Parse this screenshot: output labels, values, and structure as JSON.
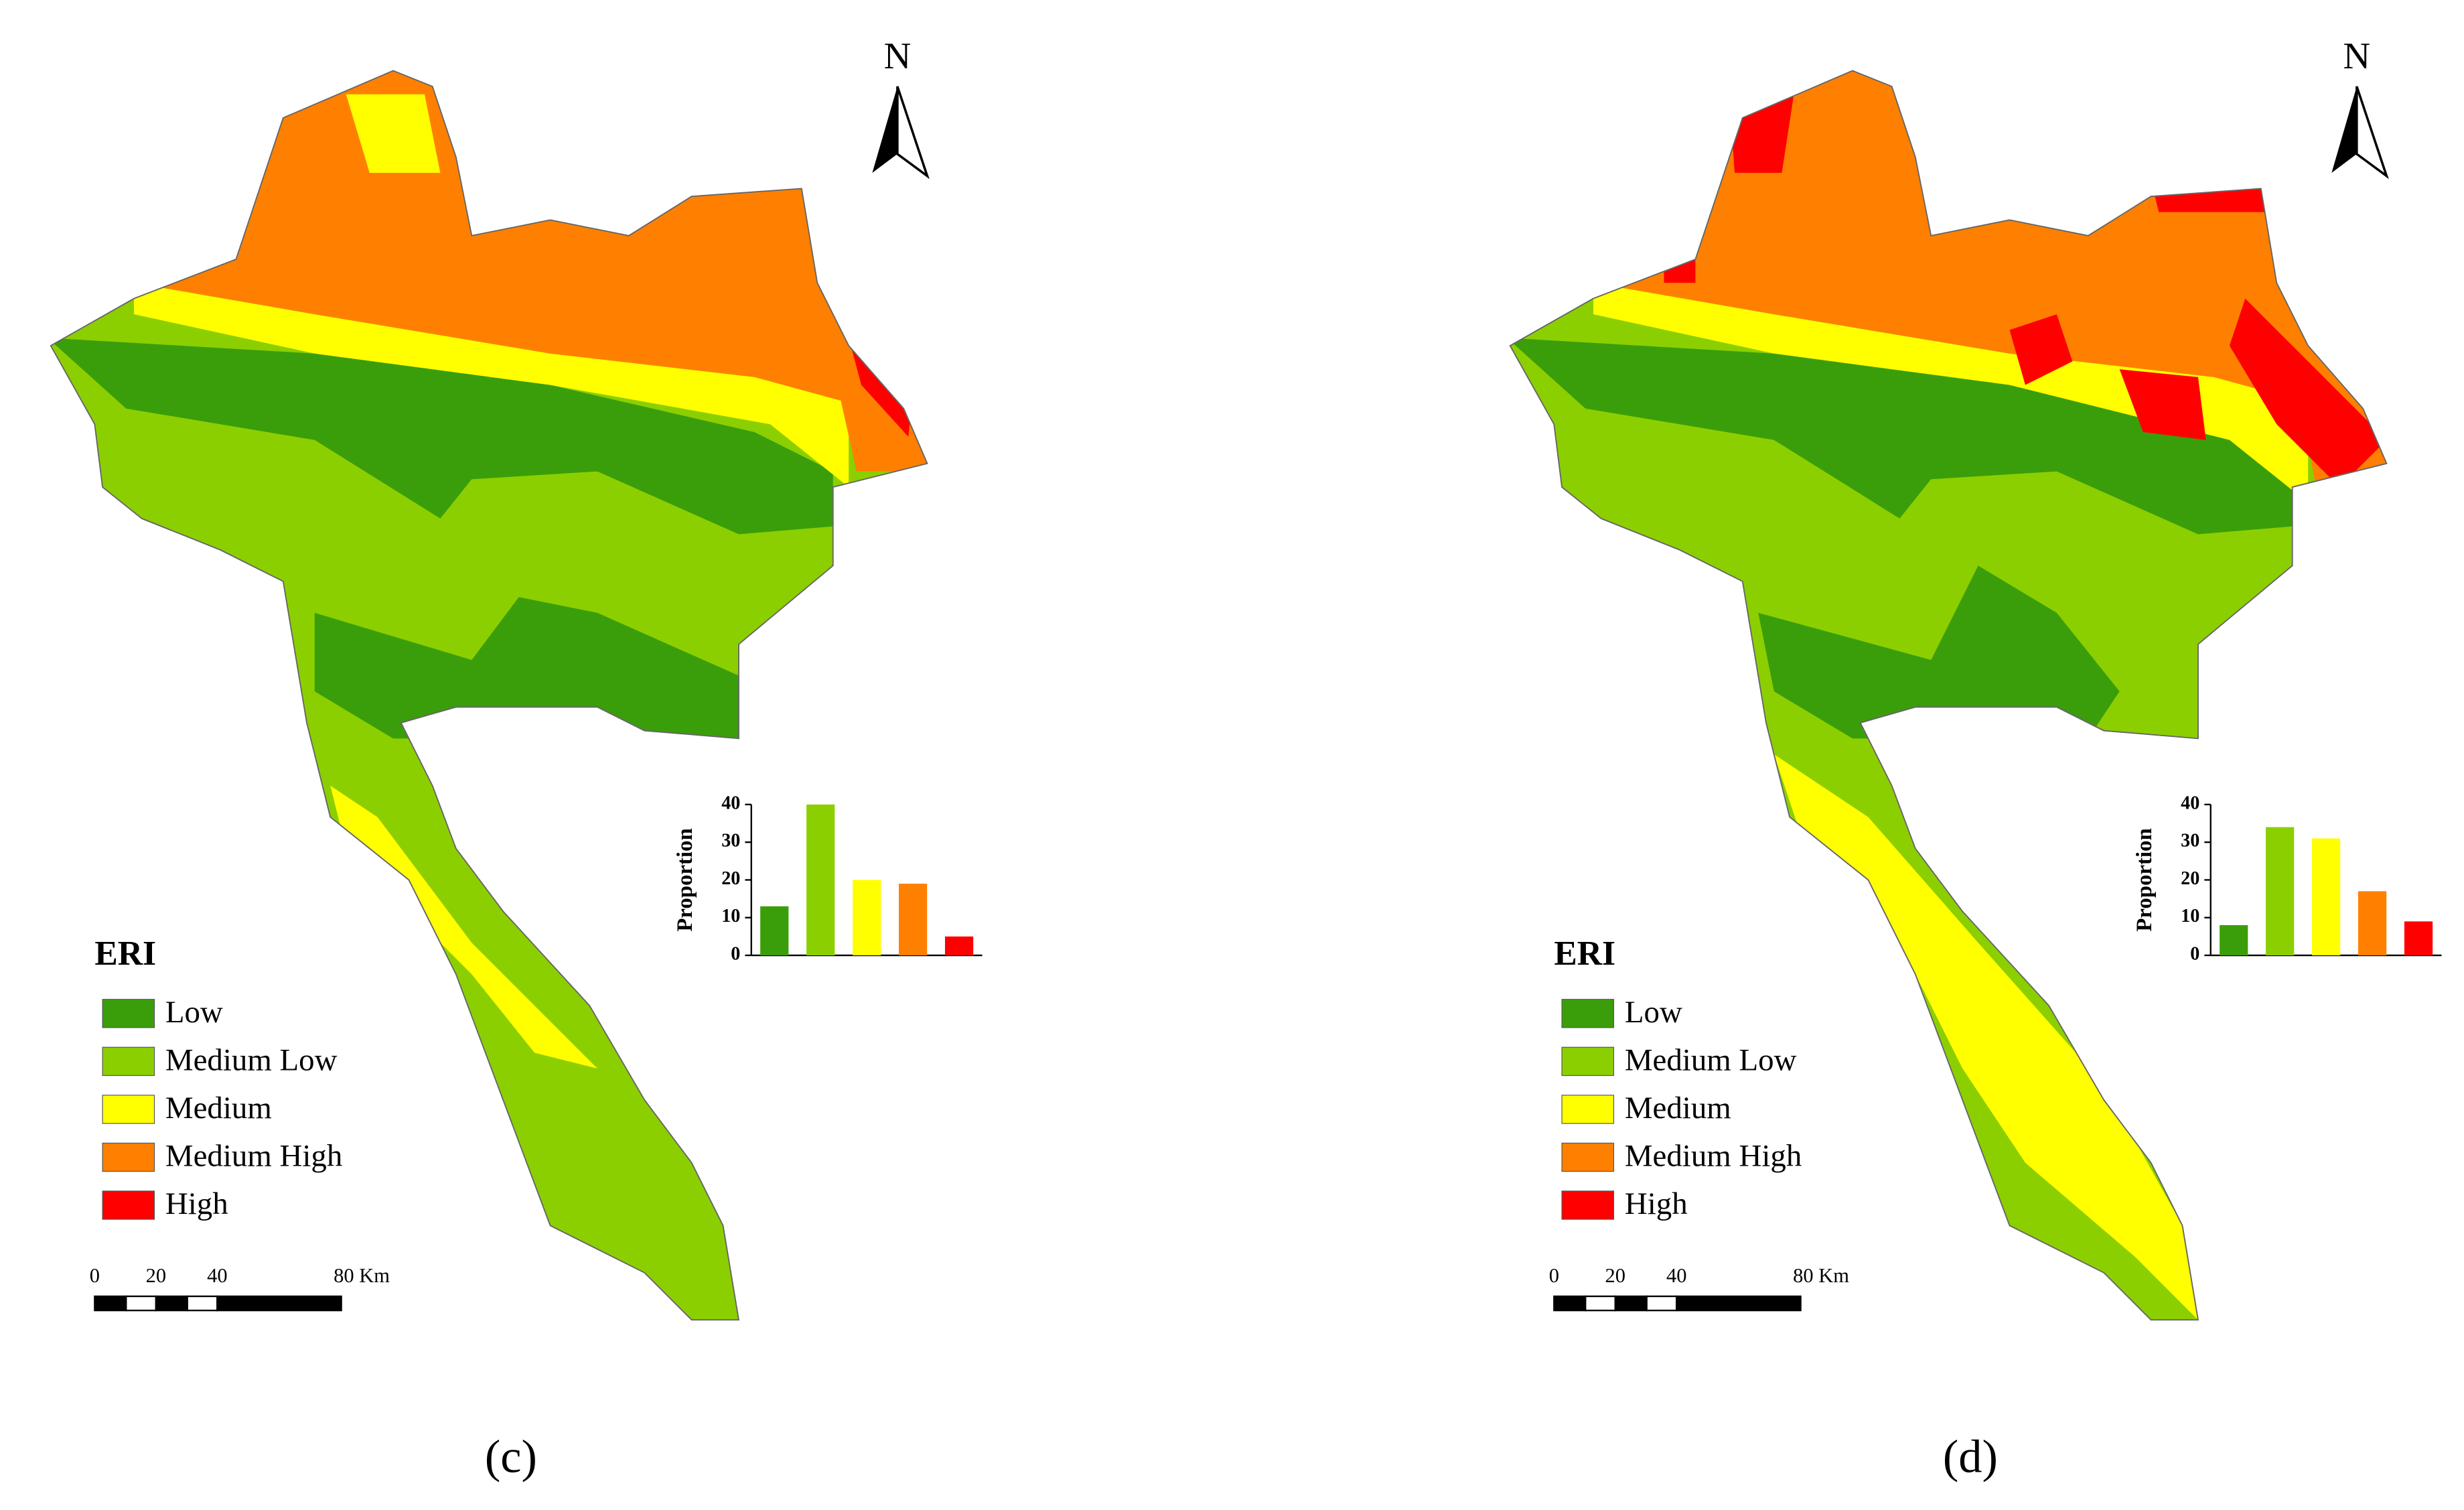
{
  "chart_data": [
    {
      "type": "bar",
      "ylabel": "Proportion",
      "categories": [
        null,
        null,
        null,
        null,
        null
      ],
      "values": [
        13,
        40,
        20,
        19,
        5
      ],
      "colors": [
        "#3a9e0a",
        "#8ccf00",
        "#ffff00",
        "#ff8000",
        "#ff0000"
      ],
      "ylim": [
        0,
        40
      ],
      "yticks": [
        0,
        10,
        20,
        30,
        40
      ]
    },
    {
      "type": "bar",
      "ylabel": "Proportion",
      "categories": [
        null,
        null,
        null,
        null,
        null
      ],
      "values": [
        8,
        34,
        31,
        17,
        9
      ],
      "colors": [
        "#3a9e0a",
        "#8ccf00",
        "#ffff00",
        "#ff8000",
        "#ff0000"
      ],
      "ylim": [
        0,
        40
      ],
      "yticks": [
        0,
        10,
        20,
        30,
        40
      ]
    }
  ],
  "panels": [
    {
      "label": "(c)",
      "north": "N",
      "legend_title": "ERI",
      "legend": [
        {
          "label": "Low",
          "color": "#3a9e0a"
        },
        {
          "label": "Medium Low",
          "color": "#8ccf00"
        },
        {
          "label": "Medium",
          "color": "#ffff00"
        },
        {
          "label": "Medium High",
          "color": "#ff8000"
        },
        {
          "label": "High",
          "color": "#ff0000"
        }
      ],
      "scale_labels": [
        "0",
        "20",
        "40",
        "80 Km"
      ]
    },
    {
      "label": "(d)",
      "north": "N",
      "legend_title": "ERI",
      "legend": [
        {
          "label": "Low",
          "color": "#3a9e0a"
        },
        {
          "label": "Medium Low",
          "color": "#8ccf00"
        },
        {
          "label": "Medium",
          "color": "#ffff00"
        },
        {
          "label": "Medium High",
          "color": "#ff8000"
        },
        {
          "label": "High",
          "color": "#ff0000"
        }
      ],
      "scale_labels": [
        "0",
        "20",
        "40",
        "80 Km"
      ]
    }
  ]
}
